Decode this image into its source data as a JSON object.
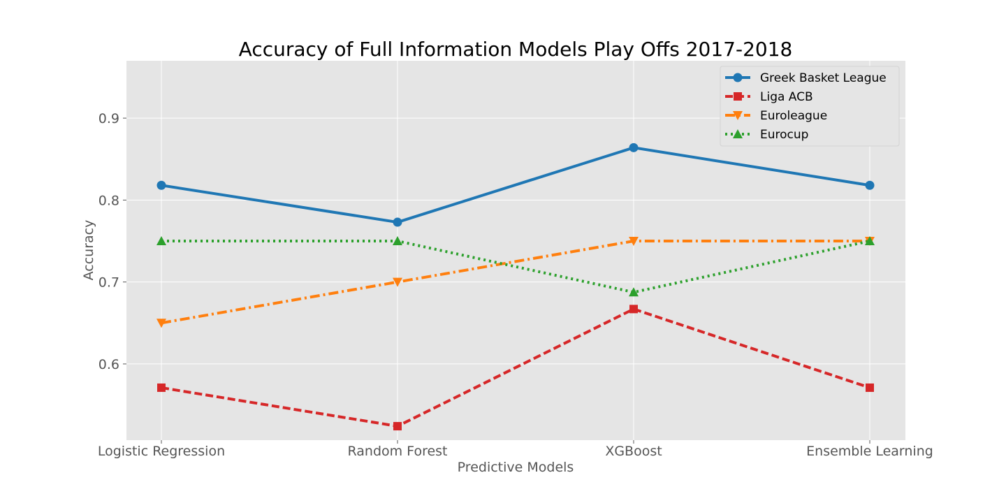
{
  "chart_data": {
    "type": "line",
    "title": "Accuracy of Full Information Models Play Offs 2017-2018",
    "xlabel": "Predictive Models",
    "ylabel": "Accuracy",
    "categories": [
      "Logistic Regression",
      "Random Forest",
      "XGBoost",
      "Ensemble Learning"
    ],
    "ylim": [
      0.507,
      0.97
    ],
    "yticks": [
      0.6,
      0.7,
      0.8,
      0.9
    ],
    "ytick_labels": [
      "0.6",
      "0.7",
      "0.8",
      "0.9"
    ],
    "grid": true,
    "legend_position": "top-right",
    "series": [
      {
        "name": "Greek Basket League",
        "values": [
          0.818,
          0.773,
          0.864,
          0.818
        ],
        "color": "#1f77b4",
        "linestyle": "solid",
        "marker": "circle"
      },
      {
        "name": "Liga ACB",
        "values": [
          0.571,
          0.524,
          0.667,
          0.571
        ],
        "color": "#d62728",
        "linestyle": "dashed",
        "marker": "square"
      },
      {
        "name": "Euroleague",
        "values": [
          0.65,
          0.7,
          0.75,
          0.75
        ],
        "color": "#ff7f0e",
        "linestyle": "dashdot",
        "marker": "triangle-down"
      },
      {
        "name": "Eurocup",
        "values": [
          0.75,
          0.75,
          0.6875,
          0.75
        ],
        "color": "#2ca02c",
        "linestyle": "dotted",
        "marker": "triangle-up"
      }
    ]
  }
}
